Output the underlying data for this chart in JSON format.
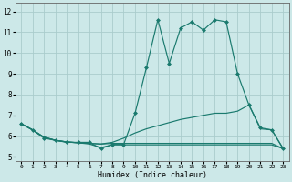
{
  "xlabel": "Humidex (Indice chaleur)",
  "ylabel": "",
  "background_color": "#cce8e8",
  "grid_color": "#aacccc",
  "line_color": "#1a7a6e",
  "xlim": [
    -0.5,
    23.5
  ],
  "ylim": [
    4.8,
    12.4
  ],
  "x_ticks": [
    0,
    1,
    2,
    3,
    4,
    5,
    6,
    7,
    8,
    9,
    10,
    11,
    12,
    13,
    14,
    15,
    16,
    17,
    18,
    19,
    20,
    21,
    22,
    23
  ],
  "y_ticks": [
    5,
    6,
    7,
    8,
    9,
    10,
    11,
    12
  ],
  "series": [
    {
      "x": [
        0,
        1,
        2,
        3,
        4,
        5,
        6,
        7,
        8,
        9,
        10,
        11,
        12,
        13,
        14,
        15,
        16,
        17,
        18,
        19,
        20,
        21,
        22,
        23
      ],
      "y": [
        6.6,
        6.3,
        5.9,
        5.8,
        5.7,
        5.7,
        5.7,
        5.4,
        5.6,
        5.6,
        7.1,
        9.3,
        11.6,
        9.5,
        11.2,
        11.5,
        11.1,
        11.6,
        11.5,
        9.0,
        7.5,
        6.4,
        6.3,
        5.4
      ],
      "marker": "D",
      "markersize": 2.0
    },
    {
      "x": [
        0,
        1,
        2,
        3,
        4,
        5,
        6,
        7,
        8,
        9,
        10,
        11,
        12,
        13,
        14,
        15,
        16,
        17,
        18,
        19,
        20,
        21,
        22,
        23
      ],
      "y": [
        6.6,
        6.3,
        5.95,
        5.8,
        5.72,
        5.68,
        5.62,
        5.45,
        5.58,
        5.58,
        5.58,
        5.58,
        5.58,
        5.58,
        5.58,
        5.58,
        5.58,
        5.58,
        5.58,
        5.58,
        5.58,
        5.58,
        5.58,
        5.4
      ],
      "marker": null,
      "markersize": 0
    },
    {
      "x": [
        0,
        1,
        2,
        3,
        4,
        5,
        6,
        7,
        8,
        9,
        10,
        11,
        12,
        13,
        14,
        15,
        16,
        17,
        18,
        19,
        20,
        21,
        22,
        23
      ],
      "y": [
        6.6,
        6.3,
        5.95,
        5.8,
        5.72,
        5.68,
        5.65,
        5.62,
        5.7,
        5.9,
        6.15,
        6.35,
        6.5,
        6.65,
        6.8,
        6.9,
        7.0,
        7.1,
        7.1,
        7.2,
        7.5,
        6.35,
        6.3,
        5.4
      ],
      "marker": null,
      "markersize": 0
    },
    {
      "x": [
        0,
        1,
        2,
        3,
        4,
        5,
        6,
        7,
        8,
        9,
        10,
        11,
        12,
        13,
        14,
        15,
        16,
        17,
        18,
        19,
        20,
        21,
        22,
        23
      ],
      "y": [
        6.6,
        6.3,
        5.95,
        5.8,
        5.72,
        5.68,
        5.65,
        5.62,
        5.65,
        5.65,
        5.65,
        5.65,
        5.65,
        5.65,
        5.65,
        5.65,
        5.65,
        5.65,
        5.65,
        5.65,
        5.65,
        5.65,
        5.65,
        5.4
      ],
      "marker": null,
      "markersize": 0
    }
  ]
}
